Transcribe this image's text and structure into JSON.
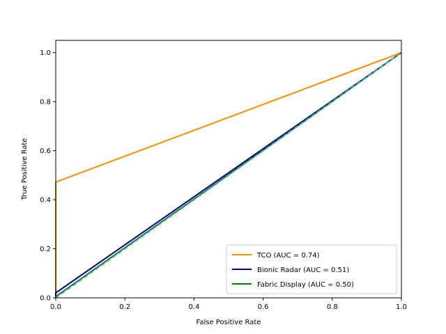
{
  "chart_data": {
    "type": "line",
    "xlabel": "False Positive Rate",
    "ylabel": "True Positive Rate",
    "xlim": [
      0.0,
      1.0
    ],
    "ylim": [
      0.0,
      1.05
    ],
    "xticks": [
      "0.0",
      "0.2",
      "0.4",
      "0.6",
      "0.8",
      "1.0"
    ],
    "yticks": [
      "0.0",
      "0.2",
      "0.4",
      "0.6",
      "0.8",
      "1.0"
    ],
    "grid": false,
    "legend_position": "lower-right",
    "series": [
      {
        "name": "TCO (AUC = 0.74)",
        "color": "#ff8c00",
        "style": "solid",
        "x": [
          0.0,
          0.0,
          1.0
        ],
        "y": [
          0.0,
          0.472,
          1.0
        ]
      },
      {
        "name": "Bionic Radar (AUC = 0.51)",
        "color": "#000080",
        "style": "solid",
        "x": [
          0.0,
          0.0,
          1.0
        ],
        "y": [
          0.0,
          0.02,
          1.0
        ]
      },
      {
        "name": "Fabric Display (AUC = 0.50)",
        "color": "#008000",
        "style": "solid",
        "x": [
          0.0,
          0.0,
          1.0
        ],
        "y": [
          0.0,
          0.005,
          1.0
        ]
      }
    ],
    "reference_line": {
      "color": "#5b9bd5",
      "style": "dashed",
      "x": [
        0.0,
        1.0
      ],
      "y": [
        0.0,
        1.0
      ]
    }
  }
}
